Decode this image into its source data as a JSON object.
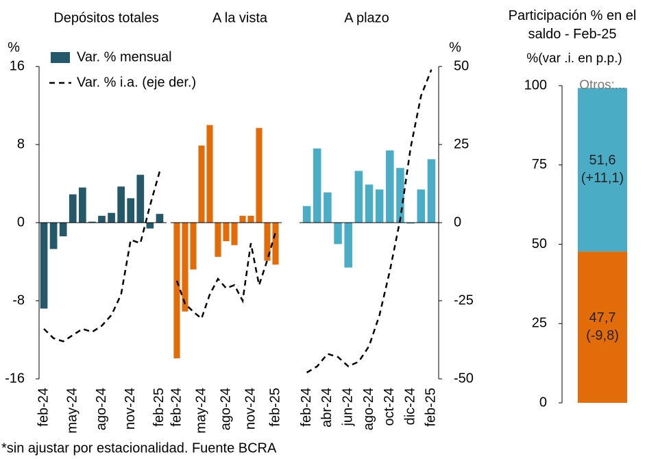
{
  "chart_data": [
    {
      "type": "bar_line",
      "ylabel": "%",
      "y2label": "%",
      "ylim": [
        -16,
        16
      ],
      "yticks": [
        -16,
        -8,
        0,
        8,
        16
      ],
      "y2lim": [
        -50,
        50
      ],
      "y2ticks": [
        -50,
        -25,
        0,
        25,
        50
      ],
      "series": [
        {
          "name": "Var. % mensual",
          "color": "#25596a"
        },
        {
          "name": "Var. % i.a. (eje der.)",
          "color": "#000000",
          "axis": "y2",
          "dashed": true
        }
      ],
      "panels": [
        {
          "title": "Depósitos totales",
          "color": "#25596a",
          "categories": [
            "feb-24",
            null,
            null,
            "may-24",
            null,
            null,
            "ago-24",
            null,
            null,
            "nov-24",
            null,
            null,
            "feb-25"
          ],
          "values": [
            -8.8,
            -2.7,
            -1.4,
            2.9,
            3.6,
            0.1,
            0.7,
            1.0,
            3.7,
            2.5,
            4.9,
            -0.6,
            0.9
          ],
          "y2_values": [
            -34,
            -37,
            -38,
            -36,
            -34,
            -35,
            -33,
            -29.6,
            -23,
            -5.5,
            -6.6,
            5.5,
            16.4
          ]
        },
        {
          "title": "A la vista",
          "color": "#e36c0a",
          "categories": [
            "feb-24",
            null,
            null,
            "may-24",
            null,
            null,
            "ago-24",
            null,
            null,
            "nov-24",
            null,
            null,
            "feb-25"
          ],
          "values": [
            -13.9,
            -9.1,
            -4.8,
            7.9,
            10.0,
            -3.5,
            -1.9,
            -2.3,
            0.7,
            0.7,
            9.7,
            -3.9,
            -4.3
          ],
          "y2_values": [
            -18.6,
            -26,
            -28.5,
            -30.7,
            -23,
            -18,
            -21,
            -20,
            -25,
            -6.6,
            -20,
            -12,
            -3
          ]
        },
        {
          "title": "A plazo",
          "color": "#4bacc6",
          "categories": [
            "feb-24",
            null,
            "abr-24",
            null,
            "jun-24",
            null,
            "ago-24",
            null,
            "oct-24",
            null,
            "dic-24",
            null,
            "feb-25"
          ],
          "values": [
            1.7,
            7.6,
            3.1,
            -2.2,
            -4.6,
            5.3,
            3.9,
            3.4,
            7.4,
            5.6,
            -0.1,
            3.4,
            6.5
          ],
          "y2_values": [
            -48,
            -46,
            -42,
            -43,
            -46,
            -44.5,
            -39.5,
            -29.6,
            -15.4,
            1.1,
            24,
            40.6,
            49
          ]
        }
      ],
      "note": "*sin ajustar por estacionalidad. Fuente BCRA"
    },
    {
      "type": "stacked_bar",
      "title": "Participación % en el saldo - Feb-25",
      "subtitle": "%(var .i. en p.p.)",
      "ylim": [
        0,
        100
      ],
      "yticks": [
        0,
        25,
        50,
        75,
        100
      ],
      "segments": [
        {
          "color": "#e36c0a",
          "value": 47.7,
          "value_label": "47,7",
          "change": -9.8,
          "change_label": "(-9,8)"
        },
        {
          "color": "#4bacc6",
          "value": 51.6,
          "value_label": "51,6",
          "change": 11.1,
          "change_label": "(+11,1)"
        },
        {
          "color": "#ffffff",
          "value": 0.7,
          "value_label": "Otros:..."
        }
      ]
    }
  ]
}
